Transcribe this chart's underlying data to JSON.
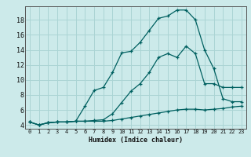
{
  "xlabel": "Humidex (Indice chaleur)",
  "bg_color": "#cceaea",
  "grid_color": "#aad4d4",
  "line_color": "#006060",
  "xlim": [
    -0.5,
    23.5
  ],
  "ylim": [
    3.5,
    19.8
  ],
  "x_ticks": [
    0,
    1,
    2,
    3,
    4,
    5,
    6,
    7,
    8,
    9,
    10,
    11,
    12,
    13,
    14,
    15,
    16,
    17,
    18,
    19,
    20,
    21,
    22,
    23
  ],
  "y_ticks": [
    4,
    6,
    8,
    10,
    12,
    14,
    16,
    18
  ],
  "series1_x": [
    0,
    1,
    2,
    3,
    4,
    5,
    6,
    7,
    8,
    9,
    10,
    11,
    12,
    13,
    14,
    15,
    16,
    17,
    18,
    19,
    20,
    21,
    22,
    23
  ],
  "series1_y": [
    4.4,
    4.0,
    4.3,
    4.4,
    4.4,
    4.5,
    6.5,
    8.6,
    9.0,
    11.0,
    13.6,
    13.8,
    15.0,
    16.6,
    18.2,
    18.5,
    19.3,
    19.3,
    18.0,
    14.0,
    11.5,
    7.5,
    7.1,
    7.1
  ],
  "series2_x": [
    0,
    1,
    2,
    3,
    4,
    5,
    6,
    7,
    8,
    9,
    10,
    11,
    12,
    13,
    14,
    15,
    16,
    17,
    18,
    19,
    20,
    21,
    22,
    23
  ],
  "series2_y": [
    4.4,
    4.0,
    4.3,
    4.4,
    4.4,
    4.5,
    4.5,
    4.5,
    4.5,
    4.6,
    4.8,
    5.0,
    5.2,
    5.4,
    5.6,
    5.8,
    6.0,
    6.1,
    6.1,
    6.0,
    6.1,
    6.2,
    6.4,
    6.5
  ],
  "series3_x": [
    0,
    1,
    2,
    3,
    4,
    5,
    6,
    7,
    8,
    9,
    10,
    11,
    12,
    13,
    14,
    15,
    16,
    17,
    18,
    19,
    20,
    21,
    22,
    23
  ],
  "series3_y": [
    4.4,
    4.0,
    4.3,
    4.4,
    4.4,
    4.5,
    4.5,
    4.6,
    4.7,
    5.5,
    7.0,
    8.5,
    9.5,
    11.0,
    13.0,
    13.5,
    13.0,
    14.5,
    13.5,
    9.5,
    9.5,
    9.0,
    9.0,
    9.0
  ]
}
